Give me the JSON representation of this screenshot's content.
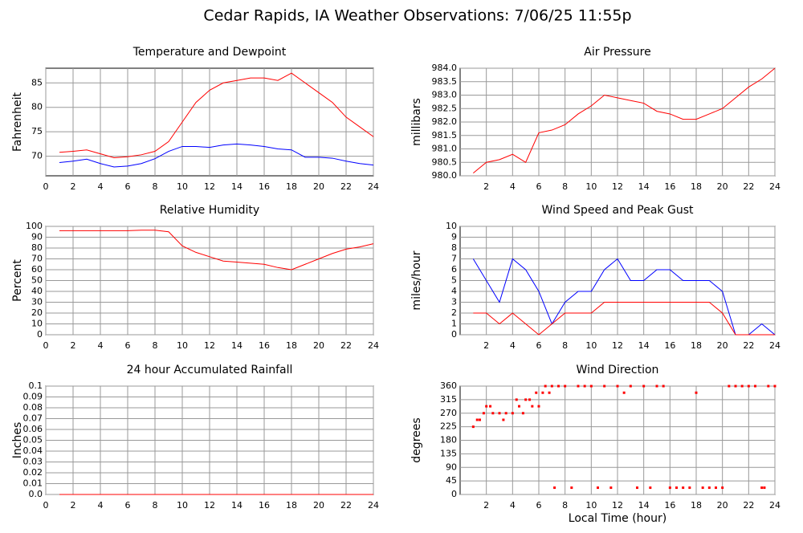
{
  "title": "Cedar Rapids, IA Weather Observations: 7/06/25 11:55p",
  "chart_data": [
    {
      "type": "line",
      "title": "Temperature and Dewpoint",
      "ylabel": "Fahrenheit",
      "x": [
        1,
        2,
        3,
        4,
        5,
        6,
        7,
        8,
        9,
        10,
        11,
        12,
        13,
        14,
        15,
        16,
        17,
        18,
        19,
        20,
        21,
        22,
        23,
        24
      ],
      "series": [
        {
          "color": "#ff0000",
          "values": [
            70.8,
            71,
            71.3,
            70.5,
            69.7,
            69.9,
            70.3,
            71,
            73,
            77,
            81,
            83.5,
            85,
            85.5,
            86,
            86,
            85.5,
            87,
            85,
            83,
            81,
            78,
            76,
            74
          ]
        },
        {
          "color": "#0000ff",
          "values": [
            68.7,
            69,
            69.4,
            68.5,
            67.8,
            68,
            68.5,
            69.5,
            71,
            72,
            72,
            71.8,
            72.3,
            72.5,
            72.3,
            72,
            71.5,
            71.3,
            69.8,
            69.8,
            69.6,
            69,
            68.5,
            68.2
          ]
        }
      ],
      "xlim": [
        0,
        24
      ],
      "xticks": [
        0,
        2,
        4,
        6,
        8,
        10,
        12,
        14,
        16,
        18,
        20,
        22,
        24
      ],
      "ylim": [
        66,
        88
      ],
      "yticks": [
        70,
        75,
        80,
        85
      ],
      "grid": true
    },
    {
      "type": "line",
      "title": "Air Pressure",
      "ylabel": "millibars",
      "x": [
        1,
        2,
        3,
        4,
        5,
        6,
        7,
        8,
        9,
        10,
        11,
        12,
        13,
        14,
        15,
        16,
        17,
        18,
        19,
        20,
        21,
        22,
        23,
        24
      ],
      "series": [
        {
          "color": "#ff0000",
          "values": [
            980.1,
            980.5,
            980.6,
            980.8,
            980.5,
            981.6,
            981.7,
            981.9,
            982.3,
            982.6,
            983,
            982.9,
            982.8,
            982.7,
            982.4,
            982.3,
            982.1,
            982.1,
            982.3,
            982.5,
            982.9,
            983.3,
            983.6,
            984
          ]
        }
      ],
      "xlim": [
        0,
        24
      ],
      "xticks": [
        2,
        4,
        6,
        8,
        10,
        12,
        14,
        16,
        18,
        20,
        22,
        24
      ],
      "ylim": [
        980,
        984
      ],
      "yticks": [
        {
          "value": 980,
          "label": "980.0"
        },
        {
          "value": 980.5,
          "label": "980.5"
        },
        {
          "value": 981,
          "label": "981.0"
        },
        {
          "value": 981.5,
          "label": "981.5"
        },
        {
          "value": 982,
          "label": "982.0"
        },
        {
          "value": 982.5,
          "label": "982.5"
        },
        {
          "value": 983,
          "label": "983.0"
        },
        {
          "value": 983.5,
          "label": "983.5"
        },
        {
          "value": 984,
          "label": "984.0"
        }
      ],
      "grid": true
    },
    {
      "type": "line",
      "title": "Relative Humidity",
      "ylabel": "Percent",
      "x": [
        1,
        2,
        3,
        4,
        5,
        6,
        7,
        8,
        9,
        10,
        11,
        12,
        13,
        14,
        15,
        16,
        17,
        18,
        19,
        20,
        21,
        22,
        23,
        24
      ],
      "series": [
        {
          "color": "#ff0000",
          "values": [
            96,
            96,
            96,
            96,
            96,
            96,
            96.5,
            96.5,
            95,
            82,
            76,
            72,
            68,
            67,
            66,
            65,
            62,
            60,
            65,
            70,
            75,
            79,
            81,
            84
          ]
        }
      ],
      "xlim": [
        0,
        24
      ],
      "xticks": [
        0,
        2,
        4,
        6,
        8,
        10,
        12,
        14,
        16,
        18,
        20,
        22,
        24
      ],
      "ylim": [
        0,
        100
      ],
      "yticks": [
        0,
        10,
        20,
        30,
        40,
        50,
        60,
        70,
        80,
        90,
        100
      ],
      "grid": true
    },
    {
      "type": "line",
      "title": "Wind Speed and Peak Gust",
      "ylabel": "miles/hour",
      "x": [
        1,
        2,
        3,
        4,
        5,
        6,
        7,
        8,
        9,
        10,
        11,
        12,
        13,
        14,
        15,
        16,
        17,
        18,
        19,
        20,
        21,
        22,
        23,
        24
      ],
      "series": [
        {
          "color": "#0000ff",
          "values": [
            7,
            5,
            3,
            7,
            6,
            4,
            1,
            3,
            4,
            4,
            6,
            7,
            5,
            5,
            6,
            6,
            5,
            5,
            5,
            4,
            0,
            0,
            1,
            0
          ]
        },
        {
          "color": "#ff0000",
          "values": [
            2,
            2,
            1,
            2,
            1,
            0,
            1,
            2,
            2,
            2,
            3,
            3,
            3,
            3,
            3,
            3,
            3,
            3,
            3,
            2,
            0,
            0,
            0,
            0
          ]
        }
      ],
      "xlim": [
        0,
        24
      ],
      "xticks": [
        2,
        4,
        6,
        8,
        10,
        12,
        14,
        16,
        18,
        20,
        22,
        24
      ],
      "ylim": [
        0,
        10
      ],
      "yticks": [
        0,
        1,
        2,
        3,
        4,
        5,
        6,
        7,
        8,
        9,
        10
      ],
      "grid": true
    },
    {
      "type": "line",
      "title": "24 hour Accumulated Rainfall",
      "ylabel": "Inches",
      "x": [
        1,
        2,
        3,
        4,
        5,
        6,
        7,
        8,
        9,
        10,
        11,
        12,
        13,
        14,
        15,
        16,
        17,
        18,
        19,
        20,
        21,
        22,
        23,
        24
      ],
      "series": [
        {
          "color": "#ff0000",
          "values": [
            0,
            0,
            0,
            0,
            0,
            0,
            0,
            0,
            0,
            0,
            0,
            0,
            0,
            0,
            0,
            0,
            0,
            0,
            0,
            0,
            0,
            0,
            0,
            0
          ]
        }
      ],
      "xlim": [
        0,
        24
      ],
      "xticks": [
        0,
        2,
        4,
        6,
        8,
        10,
        12,
        14,
        16,
        18,
        20,
        22,
        24
      ],
      "ylim": [
        0,
        0.1
      ],
      "yticks": [
        {
          "value": 0,
          "label": "0.0"
        },
        0.01,
        0.02,
        0.03,
        0.04,
        0.05,
        0.06,
        0.07,
        0.08,
        0.09,
        0.1
      ],
      "grid": true
    },
    {
      "type": "scatter",
      "title": "Wind Direction",
      "ylabel": "degrees",
      "xlabel": "Local Time (hour)",
      "x": [
        1,
        1.3,
        1.5,
        1.8,
        2,
        2.3,
        2.5,
        3,
        3.3,
        3.5,
        4,
        4.3,
        4.5,
        4.8,
        5,
        5.3,
        5.5,
        5.8,
        6,
        6.3,
        6.5,
        6.8,
        7,
        7.2,
        7.5,
        8,
        8.5,
        9,
        9.5,
        10,
        10.5,
        11,
        11.5,
        12,
        12.5,
        13,
        13.5,
        14,
        14.5,
        15,
        15.5,
        16,
        16.5,
        17,
        17.5,
        18,
        18.5,
        19,
        19.5,
        20,
        20.5,
        21,
        21.5,
        22,
        22.5,
        23,
        23.2,
        23.5,
        24
      ],
      "series": [
        {
          "color": "#ff0000",
          "values": [
            225,
            248,
            248,
            270,
            293,
            293,
            270,
            270,
            248,
            270,
            270,
            315,
            293,
            270,
            315,
            315,
            293,
            338,
            293,
            338,
            360,
            338,
            360,
            22.5,
            360,
            360,
            22.5,
            360,
            360,
            360,
            22.5,
            360,
            22.5,
            360,
            338,
            360,
            22.5,
            360,
            22.5,
            360,
            360,
            22.5,
            22.5,
            22.5,
            22.5,
            338,
            22.5,
            22.5,
            22.5,
            22.5,
            360,
            360,
            360,
            360,
            360,
            22.5,
            22.5,
            360,
            360
          ]
        }
      ],
      "xlim": [
        0,
        24
      ],
      "xticks": [
        2,
        4,
        6,
        8,
        10,
        12,
        14,
        16,
        18,
        20,
        22,
        24
      ],
      "ylim": [
        0,
        360
      ],
      "yticks": [
        0,
        45,
        90,
        135,
        180,
        225,
        270,
        315,
        360
      ],
      "grid": true
    }
  ]
}
